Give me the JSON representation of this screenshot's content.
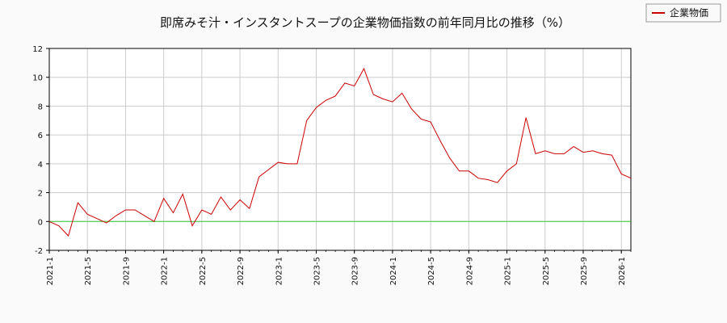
{
  "chart_data": {
    "type": "line",
    "title": "即席みそ汁・インスタントスープの企業物価指数の前年同月比の推移（%）",
    "xlabel": "",
    "ylabel": "",
    "ylim": [
      -2,
      12
    ],
    "yticks": [
      -2,
      0,
      2,
      4,
      6,
      8,
      10,
      12
    ],
    "xticks": [
      "2021-1",
      "2021-5",
      "2021-9",
      "2022-1",
      "2022-5",
      "2022-9",
      "2023-1",
      "2023-5",
      "2023-9",
      "2024-1",
      "2024-5",
      "2024-9",
      "2025-1",
      "2025-5",
      "2025-9",
      "2026-1"
    ],
    "grid": true,
    "legend": "top-right",
    "reference_line": {
      "y": 0,
      "color": "#33cc33"
    },
    "series": [
      {
        "name": "企業物価",
        "color": "#cc0000",
        "x": [
          "2021-1",
          "2021-2",
          "2021-3",
          "2021-4",
          "2021-5",
          "2021-6",
          "2021-7",
          "2021-8",
          "2021-9",
          "2021-10",
          "2021-11",
          "2021-12",
          "2022-1",
          "2022-2",
          "2022-3",
          "2022-4",
          "2022-5",
          "2022-6",
          "2022-7",
          "2022-8",
          "2022-9",
          "2022-10",
          "2022-11",
          "2022-12",
          "2023-1",
          "2023-2",
          "2023-3",
          "2023-4",
          "2023-5",
          "2023-6",
          "2023-7",
          "2023-8",
          "2023-9",
          "2023-10",
          "2023-11",
          "2023-12",
          "2024-1",
          "2024-2",
          "2024-3",
          "2024-4",
          "2024-5",
          "2024-6",
          "2024-7",
          "2024-8",
          "2024-9",
          "2024-10",
          "2024-11",
          "2024-12",
          "2025-1",
          "2025-2",
          "2025-3",
          "2025-4",
          "2025-5",
          "2025-6",
          "2025-7",
          "2025-8",
          "2025-9",
          "2025-10",
          "2025-11",
          "2025-12",
          "2026-1",
          "2026-2"
        ],
        "values": [
          0.0,
          -0.3,
          -1.0,
          1.3,
          0.5,
          0.2,
          -0.1,
          0.4,
          0.8,
          0.8,
          0.4,
          0.0,
          1.6,
          0.6,
          1.9,
          -0.3,
          0.8,
          0.5,
          1.7,
          0.8,
          1.5,
          0.9,
          3.1,
          3.6,
          4.1,
          4.0,
          4.0,
          7.0,
          7.9,
          8.4,
          8.7,
          9.6,
          9.4,
          10.6,
          8.8,
          8.5,
          8.3,
          8.9,
          7.8,
          7.1,
          6.9,
          5.6,
          4.4,
          3.5,
          3.5,
          3.0,
          2.9,
          2.7,
          3.5,
          4.0,
          7.2,
          4.7,
          4.9,
          4.7,
          4.7,
          5.2,
          4.8,
          4.9,
          4.7,
          4.6,
          3.3,
          3.0
        ]
      }
    ]
  }
}
